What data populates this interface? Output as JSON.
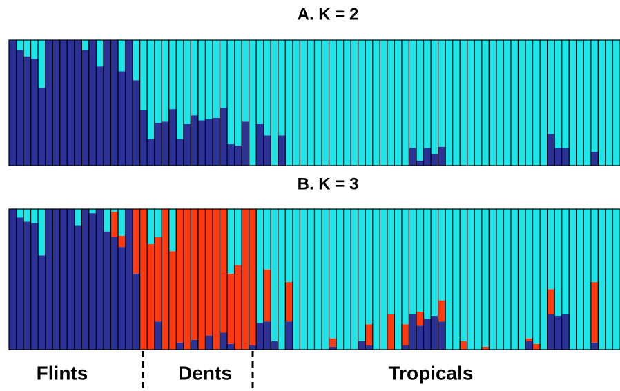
{
  "chart_data": [
    {
      "type": "bar",
      "stacked": true,
      "title": "A. K = 2",
      "ylim": [
        0,
        1
      ],
      "series": [
        {
          "color": "#2b3196",
          "values": [
            1,
            0.92,
            0.87,
            0.85,
            0.62,
            1,
            1,
            1,
            1,
            1,
            0.92,
            1,
            0.79,
            1,
            1,
            0.75,
            1,
            0.68,
            0.44,
            0.21,
            0.34,
            0.35,
            0.45,
            0.21,
            0.33,
            0.4,
            0.36,
            0.37,
            0.38,
            0.46,
            0.17,
            0.16,
            0.35,
            0,
            0.33,
            0.24,
            0,
            0.24,
            0,
            0,
            0,
            0,
            0,
            0,
            0,
            0,
            0,
            0,
            0,
            0,
            0,
            0,
            0,
            0,
            0,
            0.14,
            0.04,
            0.14,
            0.09,
            0.15,
            0,
            0,
            0,
            0,
            0,
            0,
            0,
            0,
            0,
            0,
            0,
            0,
            0,
            0,
            0.25,
            0.14,
            0.14,
            0,
            0,
            0,
            0.11,
            0,
            0,
            0
          ]
        },
        {
          "color": "#1ee6e8",
          "values": [
            0,
            0.08,
            0.13,
            0.15,
            0.38,
            0,
            0,
            0,
            0,
            0,
            0.08,
            0,
            0.21,
            0,
            0,
            0.25,
            0,
            0.32,
            0.56,
            0.79,
            0.66,
            0.65,
            0.55,
            0.79,
            0.67,
            0.6,
            0.64,
            0.63,
            0.62,
            0.54,
            0.83,
            0.84,
            0.65,
            1,
            0.67,
            0.76,
            1,
            0.76,
            1,
            1,
            1,
            1,
            1,
            1,
            1,
            1,
            1,
            1,
            1,
            1,
            1,
            1,
            1,
            1,
            1,
            0.86,
            0.96,
            0.86,
            0.91,
            0.85,
            1,
            1,
            1,
            1,
            1,
            1,
            1,
            1,
            1,
            1,
            1,
            1,
            1,
            1,
            0.75,
            0.86,
            0.86,
            1,
            1,
            1,
            0.89,
            1,
            1,
            1
          ]
        }
      ]
    },
    {
      "type": "bar",
      "stacked": true,
      "title": "B. K = 3",
      "ylim": [
        0,
        1
      ],
      "series": [
        {
          "color": "#2b3196",
          "values": [
            1,
            0.94,
            0.91,
            0.9,
            0.67,
            1,
            1,
            1,
            1,
            0.88,
            1,
            0.97,
            1,
            0.84,
            0.8,
            0.73,
            1,
            0.54,
            0,
            0,
            0.2,
            0,
            0,
            0.05,
            0,
            0.07,
            0,
            0.1,
            0,
            0.12,
            0.04,
            0,
            0,
            0.03,
            0.19,
            0.2,
            0.06,
            0,
            0.2,
            0,
            0,
            0,
            0,
            0,
            0.02,
            0,
            0,
            0,
            0.06,
            0.03,
            0,
            0,
            0,
            0,
            0.03,
            0.25,
            0.17,
            0.22,
            0.24,
            0.2,
            0,
            0,
            0,
            0,
            0,
            0,
            0,
            0,
            0,
            0,
            0,
            0.06,
            0,
            0,
            0.25,
            0.24,
            0.25,
            0,
            0,
            0,
            0.05,
            0,
            0,
            0
          ]
        },
        {
          "color": "#ff3a10",
          "values": [
            0,
            0,
            0,
            0,
            0,
            0,
            0,
            0,
            0,
            0,
            0,
            0,
            0,
            0,
            0.18,
            0.08,
            0,
            0.46,
            1,
            0.75,
            0.6,
            1,
            0.7,
            0.95,
            1,
            0.93,
            1,
            0.9,
            1,
            0.88,
            0.5,
            0.6,
            1,
            0.97,
            0,
            0.37,
            0,
            0,
            0.28,
            0,
            0,
            0,
            0,
            0,
            0.06,
            0,
            0,
            0,
            0,
            0.15,
            0,
            0,
            0.25,
            0,
            0.15,
            0,
            0.1,
            0,
            0,
            0.15,
            0,
            0,
            0.06,
            0,
            0,
            0.02,
            0,
            0,
            0,
            0,
            0,
            0.02,
            0.04,
            0,
            0.18,
            0,
            0,
            0,
            0,
            0,
            0.43,
            0,
            0,
            0
          ]
        },
        {
          "color": "#1ee6e8",
          "values": [
            0,
            0.06,
            0.09,
            0.1,
            0.33,
            0,
            0,
            0,
            0,
            0.12,
            0,
            0.03,
            0,
            0.16,
            0.02,
            0.19,
            0,
            0,
            0,
            0.25,
            0.2,
            0,
            0.3,
            0,
            0,
            0,
            0,
            0,
            0,
            0,
            0.46,
            0.4,
            0,
            0,
            0.81,
            0.43,
            0.94,
            1,
            0.52,
            1,
            1,
            1,
            1,
            1,
            0.92,
            1,
            1,
            1,
            0.94,
            0.82,
            1,
            1,
            0.75,
            1,
            0.82,
            0.75,
            0.73,
            0.78,
            0.76,
            0.65,
            1,
            1,
            0.94,
            1,
            1,
            0.98,
            1,
            1,
            1,
            1,
            1,
            0.92,
            0.96,
            1,
            0.57,
            0.76,
            0.75,
            1,
            1,
            1,
            0.52,
            1,
            1,
            1
          ]
        }
      ]
    }
  ],
  "groups": [
    "Flints",
    "Dents",
    "Tropicals"
  ]
}
